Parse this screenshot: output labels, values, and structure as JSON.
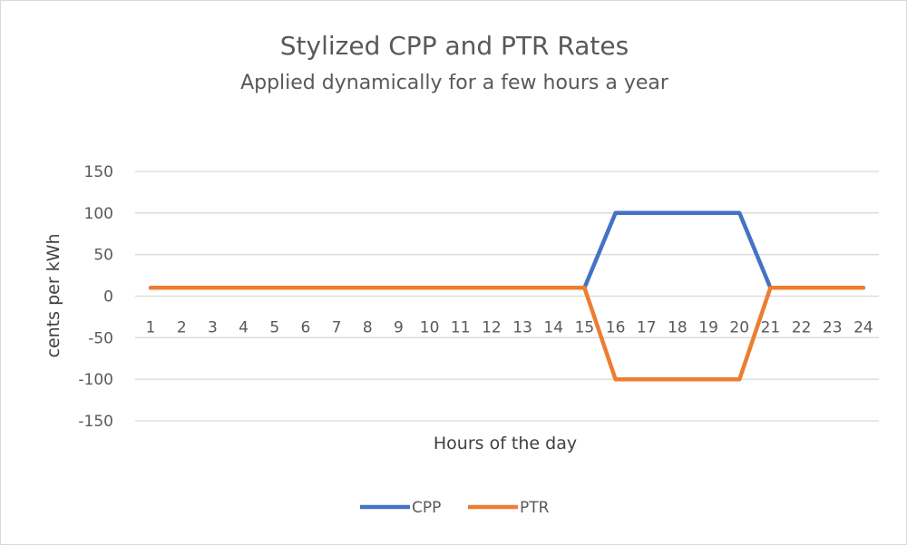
{
  "chart_data": {
    "type": "line",
    "title": "Stylized CPP and PTR Rates",
    "subtitle": "Applied dynamically for a few hours a year",
    "xlabel": "Hours of the day",
    "ylabel": "cents per kWh",
    "categories": [
      "1",
      "2",
      "3",
      "4",
      "5",
      "6",
      "7",
      "8",
      "9",
      "10",
      "11",
      "12",
      "13",
      "14",
      "15",
      "16",
      "17",
      "18",
      "19",
      "20",
      "21",
      "22",
      "23",
      "24"
    ],
    "ylim": [
      -150,
      150
    ],
    "yticks": [
      "150",
      "100",
      "50",
      "0",
      "-50",
      "-100",
      "-150"
    ],
    "grid": true,
    "legend": "bottom",
    "series": [
      {
        "name": "CPP",
        "color": "#4472c4",
        "values": [
          10,
          10,
          10,
          10,
          10,
          10,
          10,
          10,
          10,
          10,
          10,
          10,
          10,
          10,
          10,
          100,
          100,
          100,
          100,
          100,
          10,
          10,
          10,
          10
        ]
      },
      {
        "name": "PTR",
        "color": "#ed7d31",
        "values": [
          10,
          10,
          10,
          10,
          10,
          10,
          10,
          10,
          10,
          10,
          10,
          10,
          10,
          10,
          10,
          -100,
          -100,
          -100,
          -100,
          -100,
          10,
          10,
          10,
          10
        ]
      }
    ]
  }
}
